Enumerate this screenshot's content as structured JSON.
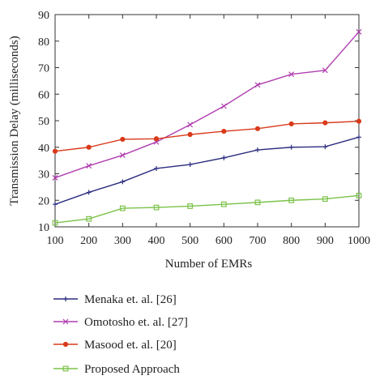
{
  "chart_data": {
    "type": "line",
    "title": "",
    "xlabel": "Number of EMRs",
    "ylabel": "Transmission Delay (milliseconds)",
    "x": [
      100,
      200,
      300,
      400,
      500,
      600,
      700,
      800,
      900,
      1000
    ],
    "xlim": [
      100,
      1000
    ],
    "ylim": [
      10,
      90
    ],
    "xticks": [
      100,
      200,
      300,
      400,
      500,
      600,
      700,
      800,
      900,
      1000
    ],
    "yticks": [
      10,
      20,
      30,
      40,
      50,
      60,
      70,
      80,
      90
    ],
    "grid": false,
    "legend_position": "below",
    "series": [
      {
        "name": "Menaka et. al. [26]",
        "color": "#2b2d7f",
        "marker": "plus",
        "values": [
          18.5,
          23,
          27,
          32,
          33.5,
          36,
          39,
          40,
          40.2,
          43.8
        ]
      },
      {
        "name": "Omotosho et. al. [27]",
        "color": "#b03fb0",
        "marker": "x",
        "values": [
          28.5,
          33,
          37,
          42,
          48.5,
          55.5,
          63.5,
          67.5,
          69,
          83.5
        ]
      },
      {
        "name": "Masood et. al. [20]",
        "color": "#d93a1a",
        "marker": "dot",
        "values": [
          38.5,
          40,
          43,
          43.2,
          44.8,
          46,
          47,
          48.8,
          49.2,
          49.8
        ]
      },
      {
        "name": "Proposed Approach",
        "color": "#7cc24a",
        "marker": "square",
        "values": [
          11.5,
          13,
          17,
          17.3,
          17.8,
          18.5,
          19.2,
          20,
          20.5,
          21.8
        ]
      }
    ]
  }
}
